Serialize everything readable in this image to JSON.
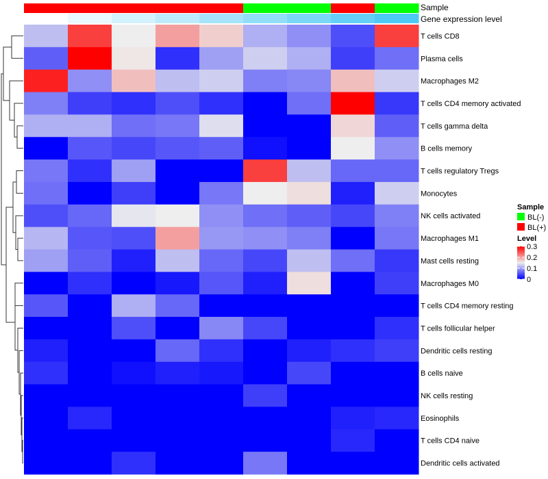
{
  "chart_data": {
    "type": "heatmap",
    "annotation_labels": {
      "sample": "Sample",
      "gene_expression": "Gene expression level"
    },
    "columns": [
      {
        "sample": "BL(+)",
        "gene_expression_level": 0.0
      },
      {
        "sample": "BL(+)",
        "gene_expression_level": 0.12
      },
      {
        "sample": "BL(+)",
        "gene_expression_level": 0.25
      },
      {
        "sample": "BL(+)",
        "gene_expression_level": 0.37
      },
      {
        "sample": "BL(+)",
        "gene_expression_level": 0.5
      },
      {
        "sample": "BL(-)",
        "gene_expression_level": 0.62
      },
      {
        "sample": "BL(-)",
        "gene_expression_level": 0.75
      },
      {
        "sample": "BL(+)",
        "gene_expression_level": 0.87
      },
      {
        "sample": "BL(-)",
        "gene_expression_level": 1.0
      }
    ],
    "rows": [
      "T cells CD8",
      "Plasma cells",
      "Macrophages M2",
      "T cells CD4 memory activated",
      "T cells gamma delta",
      "B cells memory",
      "T cells regulatory  Tregs",
      "Monocytes",
      "NK cells activated",
      "Macrophages M1",
      "Mast cells resting",
      "Macrophages M0",
      "T cells CD4 memory resting",
      "T cells follicular helper",
      "Dendritic cells resting",
      "B cells naive",
      "NK cells resting",
      "Eosinophils",
      "T cells CD4 naive",
      "Dendritic cells activated"
    ],
    "values": [
      [
        0.12,
        0.26,
        0.15,
        0.2,
        0.17,
        0.11,
        0.09,
        0.05,
        0.26
      ],
      [
        0.06,
        0.3,
        0.155,
        0.03,
        0.1,
        0.13,
        0.11,
        0.04,
        0.07
      ],
      [
        0.28,
        0.09,
        0.18,
        0.12,
        0.13,
        0.08,
        0.085,
        0.18,
        0.13
      ],
      [
        0.08,
        0.04,
        0.03,
        0.05,
        0.03,
        0,
        0.07,
        0.3,
        0.035
      ],
      [
        0.11,
        0.11,
        0.07,
        0.075,
        0.14,
        0,
        0,
        0.165,
        0.06
      ],
      [
        0,
        0.055,
        0.045,
        0.055,
        0.06,
        0.01,
        0,
        0.15,
        0.09
      ],
      [
        0.075,
        0.03,
        0.1,
        0,
        0,
        0.26,
        0.12,
        0.065,
        0.065
      ],
      [
        0.07,
        0,
        0.04,
        0,
        0.075,
        0.15,
        0.16,
        0.02,
        0.13
      ],
      [
        0.05,
        0.065,
        0.145,
        0.15,
        0.09,
        0.07,
        0.06,
        0.045,
        0.08
      ],
      [
        0.115,
        0.055,
        0.05,
        0.2,
        0.095,
        0.09,
        0.08,
        0,
        0.075
      ],
      [
        0.1,
        0.06,
        0.02,
        0.12,
        0.065,
        0.045,
        0.12,
        0.07,
        0.035
      ],
      [
        0,
        0.03,
        0,
        0.015,
        0.055,
        0.02,
        0.16,
        0,
        0.04
      ],
      [
        0.055,
        0,
        0.11,
        0.065,
        0,
        0,
        0,
        0,
        0
      ],
      [
        0,
        0,
        0.05,
        0,
        0.085,
        0.045,
        0,
        0,
        0.03
      ],
      [
        0.02,
        0,
        0,
        0.065,
        0.03,
        0,
        0.02,
        0.03,
        0.04
      ],
      [
        0.03,
        0,
        0.01,
        0.02,
        0.015,
        0,
        0.045,
        0,
        0
      ],
      [
        0,
        0,
        0,
        0,
        0,
        0.04,
        0,
        0,
        0
      ],
      [
        0,
        0.025,
        0,
        0,
        0,
        0,
        0,
        0.02,
        0.025
      ],
      [
        0,
        0,
        0,
        0,
        0,
        0,
        0,
        0.025,
        0
      ],
      [
        0,
        0,
        0.03,
        0,
        0,
        0.075,
        0,
        0,
        0
      ]
    ],
    "color_scale": {
      "min": 0,
      "mid": 0.15,
      "max": 0.3,
      "low": "#0000ff",
      "midcolor": "#eeeeee",
      "high": "#ff0000"
    },
    "legend": {
      "sample_title": "Sample",
      "sample_items": [
        {
          "label": "BL(-)",
          "color": "#00ff00"
        },
        {
          "label": "BL(+)",
          "color": "#ff0000"
        }
      ],
      "level_title": "Level",
      "level_ticks": [
        "0.3",
        "0.2",
        "0.1",
        "0"
      ],
      "level_tick_values": [
        0.3,
        0.2,
        0.1,
        0
      ],
      "placement": "right"
    },
    "gene_expression_colors": {
      "low": "#ffffff",
      "high": "#4dc9f6"
    }
  }
}
